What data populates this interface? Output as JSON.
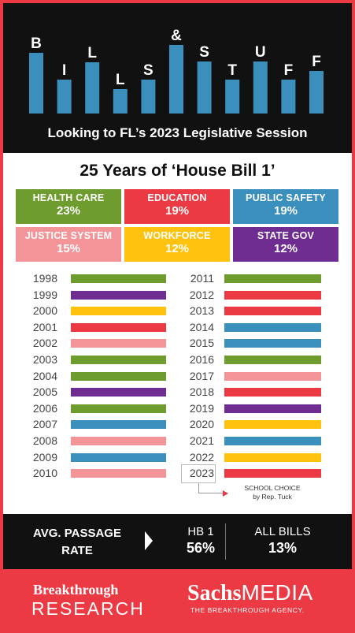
{
  "header": {
    "letters": [
      "B",
      "I",
      "L",
      "L",
      "S",
      "&",
      "S",
      "T",
      "U",
      "F",
      "F"
    ],
    "subtitle": "Looking to FL’s 2023 Legislative Session"
  },
  "title": "25 Years of ‘House Bill 1’",
  "categories": [
    {
      "name": "HEALTH CARE",
      "pct": "23%",
      "color": "#6e9c2e"
    },
    {
      "name": "EDUCATION",
      "pct": "19%",
      "color": "#ec3a44"
    },
    {
      "name": "PUBLIC SAFETY",
      "pct": "19%",
      "color": "#3a8fbd"
    },
    {
      "name": "JUSTICE SYSTEM",
      "pct": "15%",
      "color": "#f29498"
    },
    {
      "name": "WORKFORCE",
      "pct": "12%",
      "color": "#ffc20e"
    },
    {
      "name": "STATE GOV",
      "pct": "12%",
      "color": "#6f2c91"
    }
  ],
  "chart_data": {
    "type": "table",
    "rows": [
      {
        "year": "1998",
        "category": "HEALTH CARE"
      },
      {
        "year": "1999",
        "category": "STATE GOV"
      },
      {
        "year": "2000",
        "category": "WORKFORCE"
      },
      {
        "year": "2001",
        "category": "EDUCATION"
      },
      {
        "year": "2002",
        "category": "JUSTICE SYSTEM"
      },
      {
        "year": "2003",
        "category": "HEALTH CARE"
      },
      {
        "year": "2004",
        "category": "HEALTH CARE"
      },
      {
        "year": "2005",
        "category": "STATE GOV"
      },
      {
        "year": "2006",
        "category": "HEALTH CARE"
      },
      {
        "year": "2007",
        "category": "PUBLIC SAFETY"
      },
      {
        "year": "2008",
        "category": "JUSTICE SYSTEM"
      },
      {
        "year": "2009",
        "category": "PUBLIC SAFETY"
      },
      {
        "year": "2010",
        "category": "JUSTICE SYSTEM"
      },
      {
        "year": "2011",
        "category": "HEALTH CARE"
      },
      {
        "year": "2012",
        "category": "EDUCATION"
      },
      {
        "year": "2013",
        "category": "EDUCATION"
      },
      {
        "year": "2014",
        "category": "PUBLIC SAFETY"
      },
      {
        "year": "2015",
        "category": "PUBLIC SAFETY"
      },
      {
        "year": "2016",
        "category": "HEALTH CARE"
      },
      {
        "year": "2017",
        "category": "JUSTICE SYSTEM"
      },
      {
        "year": "2018",
        "category": "EDUCATION"
      },
      {
        "year": "2019",
        "category": "STATE GOV"
      },
      {
        "year": "2020",
        "category": "WORKFORCE"
      },
      {
        "year": "2021",
        "category": "PUBLIC SAFETY"
      },
      {
        "year": "2022",
        "category": "WORKFORCE"
      },
      {
        "year": "2023",
        "category": "EDUCATION"
      }
    ]
  },
  "note": {
    "line1": "SCHOOL CHOICE",
    "line2": "by Rep. Tuck"
  },
  "passage": {
    "label_line1": "AVG. PASSAGE",
    "label_line2": "RATE",
    "hb1_label": "HB 1",
    "hb1_value": "56%",
    "all_label": "ALL BILLS",
    "all_value": "13%"
  },
  "logos": {
    "breakthrough_line1": "Breakthrough",
    "breakthrough_line2": "RESEARCH",
    "sachs_bold": "Sachs",
    "sachs_light": "MEDIA",
    "sachs_tagline": "THE BREAKTHROUGH AGENCY."
  }
}
